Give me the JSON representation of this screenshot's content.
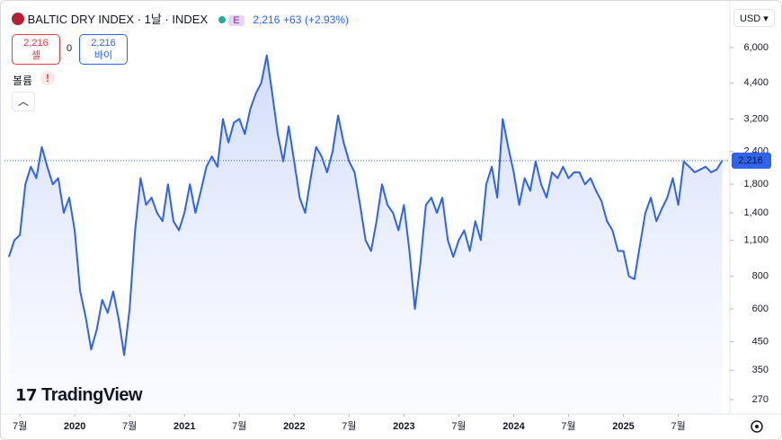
{
  "header": {
    "title": "BALTIC DRY INDEX · 1날 · INDEX",
    "badge": "E",
    "price": "2,216",
    "change": "+63",
    "change_pct": "(+2.93%)",
    "sell_price": "2,216",
    "sell_label": "셀",
    "spread": "0",
    "buy_price": "2,216",
    "buy_label": "바이",
    "volume_label": "볼륨",
    "volume_alert": "!",
    "currency": "USD",
    "logo": "TradingView"
  },
  "chart_data": {
    "type": "line",
    "color": "#2f63eb",
    "log_scale": true,
    "last_label": "2,216",
    "x": [
      2019.4,
      2019.45,
      2019.5,
      2019.55,
      2019.6,
      2019.65,
      2019.7,
      2019.75,
      2019.8,
      2019.85,
      2019.9,
      2019.95,
      2020.0,
      2020.05,
      2020.1,
      2020.15,
      2020.2,
      2020.25,
      2020.3,
      2020.35,
      2020.4,
      2020.45,
      2020.5,
      2020.55,
      2020.6,
      2020.65,
      2020.7,
      2020.75,
      2020.8,
      2020.85,
      2020.9,
      2020.95,
      2021.0,
      2021.05,
      2021.1,
      2021.15,
      2021.2,
      2021.25,
      2021.3,
      2021.35,
      2021.4,
      2021.45,
      2021.5,
      2021.55,
      2021.6,
      2021.65,
      2021.7,
      2021.75,
      2021.8,
      2021.85,
      2021.9,
      2021.95,
      2022.0,
      2022.05,
      2022.1,
      2022.15,
      2022.2,
      2022.25,
      2022.3,
      2022.35,
      2022.4,
      2022.45,
      2022.5,
      2022.55,
      2022.6,
      2022.65,
      2022.7,
      2022.75,
      2022.8,
      2022.85,
      2022.9,
      2022.95,
      2023.0,
      2023.05,
      2023.1,
      2023.15,
      2023.2,
      2023.25,
      2023.3,
      2023.35,
      2023.4,
      2023.45,
      2023.5,
      2023.55,
      2023.6,
      2023.65,
      2023.7,
      2023.75,
      2023.8,
      2023.85,
      2023.9,
      2023.95,
      2024.0,
      2024.05,
      2024.1,
      2024.15,
      2024.2,
      2024.25,
      2024.3,
      2024.35,
      2024.4,
      2024.45,
      2024.5,
      2024.55,
      2024.6,
      2024.65,
      2024.7,
      2024.75,
      2024.8,
      2024.85,
      2024.9,
      2024.95,
      2025.0,
      2025.05,
      2025.1,
      2025.15,
      2025.2,
      2025.25,
      2025.3,
      2025.35,
      2025.4,
      2025.45,
      2025.5,
      2025.55,
      2025.6,
      2025.65,
      2025.7,
      2025.75,
      2025.8,
      2025.85,
      2025.9
    ],
    "values": [
      950,
      1100,
      1150,
      1800,
      2100,
      1900,
      2500,
      2100,
      1800,
      1900,
      1400,
      1600,
      1200,
      700,
      560,
      420,
      500,
      650,
      580,
      700,
      550,
      400,
      600,
      1200,
      1900,
      1500,
      1600,
      1400,
      1300,
      1800,
      1300,
      1200,
      1400,
      1800,
      1400,
      1700,
      2100,
      2300,
      2100,
      3200,
      2600,
      3100,
      3200,
      2800,
      3500,
      4000,
      4400,
      5600,
      4000,
      2800,
      2200,
      3000,
      2200,
      1600,
      1400,
      1900,
      2500,
      2300,
      2000,
      2400,
      3300,
      2600,
      2200,
      2000,
      1500,
      1100,
      1000,
      1300,
      1800,
      1500,
      1400,
      1200,
      1500,
      1000,
      600,
      900,
      1500,
      1600,
      1400,
      1600,
      1100,
      950,
      1100,
      1200,
      1000,
      1300,
      1100,
      1800,
      2100,
      1600,
      3200,
      2500,
      2000,
      1500,
      1900,
      1700,
      2200,
      1800,
      1600,
      2000,
      1900,
      2100,
      1900,
      2000,
      2000,
      1800,
      1900,
      1700,
      1550,
      1300,
      1200,
      1000,
      1000,
      800,
      780,
      1050,
      1400,
      1600,
      1300,
      1450,
      1600,
      1900,
      1500,
      2200,
      2100,
      2000,
      2050,
      2100,
      2000,
      2050,
      2216
    ],
    "xlim": [
      2019.36,
      2025.97
    ],
    "xticks": [
      {
        "value": 2019.5,
        "label": "7월"
      },
      2020,
      {
        "value": 2020.5,
        "label": "7월"
      },
      2021,
      {
        "value": 2021.5,
        "label": "7월"
      },
      2022,
      {
        "value": 2022.5,
        "label": "7월"
      },
      2023,
      {
        "value": 2023.5,
        "label": "7월"
      },
      2024,
      {
        "value": 2024.5,
        "label": "7월"
      },
      2025,
      {
        "value": 2025.5,
        "label": "7월"
      }
    ],
    "ylim": [
      238,
      8700
    ],
    "yticks": [
      {
        "value": 6000,
        "label": "6,000"
      },
      {
        "value": 4400,
        "label": "4,400"
      },
      {
        "value": 3200,
        "label": "3,200"
      },
      {
        "value": 2400,
        "label": "2,400"
      },
      {
        "value": 1800,
        "label": "1,800"
      },
      {
        "value": 1400,
        "label": "1,400"
      },
      {
        "value": 1100,
        "label": "1,100"
      },
      800,
      600,
      450,
      350,
      270
    ]
  }
}
